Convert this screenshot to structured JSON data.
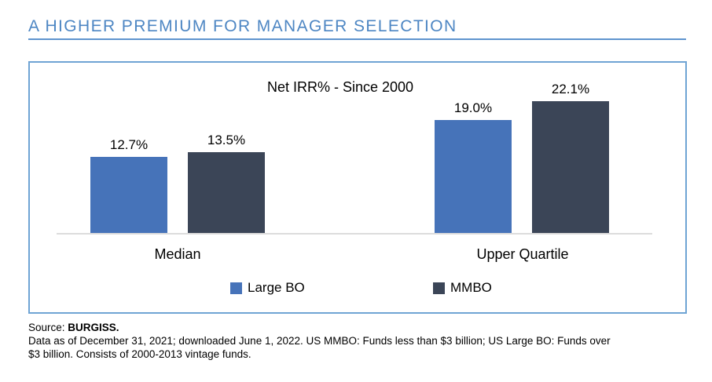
{
  "header": {
    "title": "A HIGHER PREMIUM FOR MANAGER SELECTION"
  },
  "chart_data": {
    "type": "bar",
    "title": "Net IRR% - Since 2000",
    "categories": [
      "Median",
      "Upper Quartile"
    ],
    "series": [
      {
        "name": "Large BO",
        "values": [
          12.7,
          19.0
        ],
        "color": "#4673b9"
      },
      {
        "name": "MMBO",
        "values": [
          13.5,
          22.1
        ],
        "color": "#3b4557"
      }
    ],
    "value_labels": [
      [
        "12.7%",
        "19.0%"
      ],
      [
        "13.5%",
        "22.1%"
      ]
    ],
    "ylim": [
      0,
      22.1
    ],
    "grid": false,
    "axis_line_color": "#dcdcdc",
    "legend_position": "bottom-inside"
  },
  "colors": {
    "title_blue": "#4d86c3",
    "rule_blue": "#5e94ce",
    "panel_border_blue": "#6fa4d4",
    "large_bo_blue": "#4673b9",
    "mmbo_dark": "#3b4557"
  },
  "footer": {
    "source_prefix": "Source: ",
    "source_name": "BURGISS.",
    "line2": "Data as of December 31, 2021; downloaded June 1, 2022. US MMBO: Funds less than $3 billion; US Large BO: Funds over",
    "line3": "$3 billion. Consists of 2000-2013 vintage funds."
  }
}
